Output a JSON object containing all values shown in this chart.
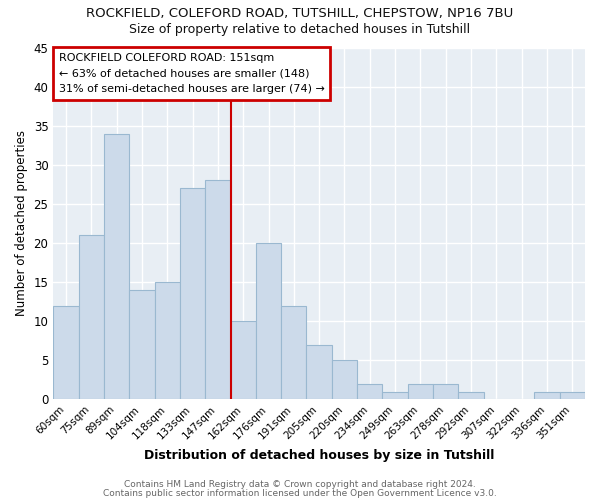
{
  "title": "ROCKFIELD, COLEFORD ROAD, TUTSHILL, CHEPSTOW, NP16 7BU",
  "subtitle": "Size of property relative to detached houses in Tutshill",
  "xlabel": "Distribution of detached houses by size in Tutshill",
  "ylabel": "Number of detached properties",
  "categories": [
    "60sqm",
    "75sqm",
    "89sqm",
    "104sqm",
    "118sqm",
    "133sqm",
    "147sqm",
    "162sqm",
    "176sqm",
    "191sqm",
    "205sqm",
    "220sqm",
    "234sqm",
    "249sqm",
    "263sqm",
    "278sqm",
    "292sqm",
    "307sqm",
    "322sqm",
    "336sqm",
    "351sqm"
  ],
  "values": [
    12,
    21,
    34,
    14,
    15,
    27,
    28,
    10,
    20,
    12,
    7,
    5,
    2,
    1,
    2,
    2,
    1,
    0,
    0,
    1,
    1
  ],
  "bar_color": "#ccdaea",
  "bar_edge_color": "#9ab8d0",
  "vline_x": 6.5,
  "vline_color": "#cc0000",
  "annotation_title": "ROCKFIELD COLEFORD ROAD: 151sqm",
  "annotation_line1": "← 63% of detached houses are smaller (148)",
  "annotation_line2": "31% of semi-detached houses are larger (74) →",
  "annotation_box_color": "#cc0000",
  "annotation_bg": "#ffffff",
  "ylim": [
    0,
    45
  ],
  "yticks": [
    0,
    5,
    10,
    15,
    20,
    25,
    30,
    35,
    40,
    45
  ],
  "footer1": "Contains HM Land Registry data © Crown copyright and database right 2024.",
  "footer2": "Contains public sector information licensed under the Open Government Licence v3.0.",
  "bg_color": "#ffffff",
  "plot_bg_color": "#e8eef4",
  "grid_color": "#ffffff"
}
